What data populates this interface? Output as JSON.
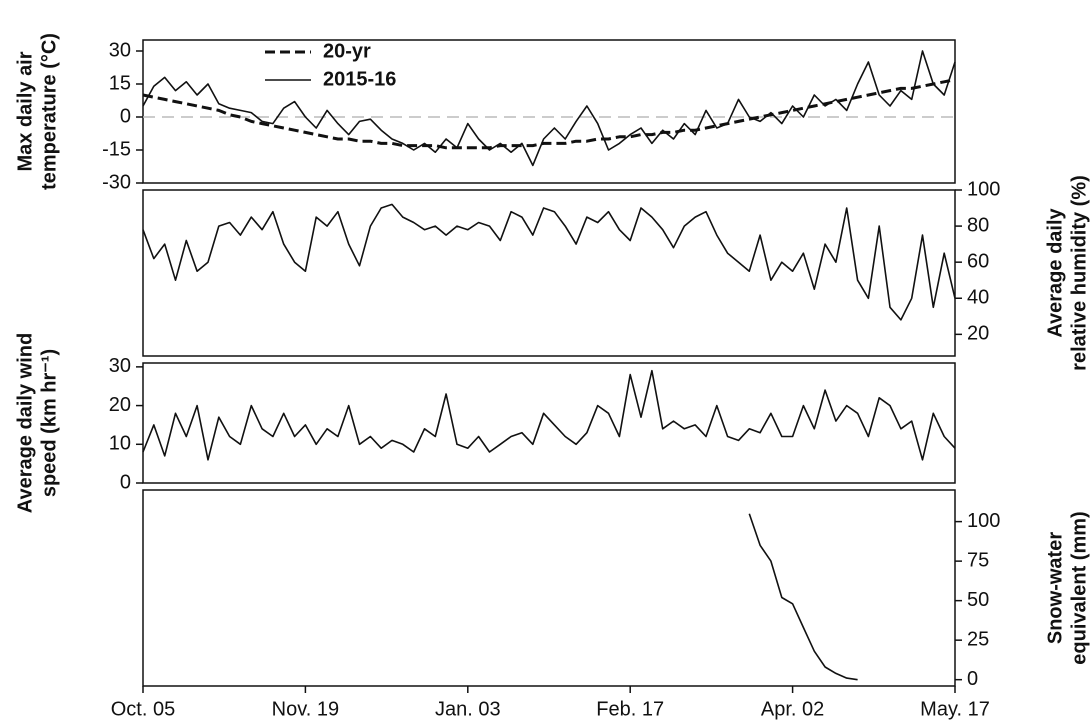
{
  "chart_data": [
    {
      "type": "line",
      "y_label": [
        "Max daily air",
        "temperature (°C)"
      ],
      "y_axis_side": "left",
      "ylim": [
        -30,
        35
      ],
      "yticks": [
        -30,
        -15,
        0,
        15,
        30
      ],
      "reference_line": 0,
      "legend": "upper left",
      "series": [
        {
          "name": "20-yr",
          "color": "#111111",
          "dashed": true,
          "values": [
            10,
            9,
            8,
            7,
            6,
            5,
            4,
            3,
            1,
            0,
            -2,
            -3,
            -4,
            -5,
            -6,
            -7,
            -8,
            -9,
            -10,
            -10,
            -11,
            -11,
            -12,
            -12,
            -13,
            -13,
            -13,
            -13,
            -14,
            -14,
            -14,
            -14,
            -14,
            -13,
            -13,
            -13,
            -13,
            -12,
            -12,
            -12,
            -11,
            -11,
            -10,
            -10,
            -9,
            -9,
            -8,
            -8,
            -7,
            -7,
            -6,
            -6,
            -5,
            -4,
            -3,
            -2,
            -1,
            0,
            1,
            2,
            3,
            4,
            5,
            6,
            7,
            8,
            9,
            10,
            11,
            12,
            13,
            13,
            14,
            15,
            16,
            17
          ]
        },
        {
          "name": "2015-16",
          "color": "#111111",
          "dashed": false,
          "values": [
            5,
            14,
            18,
            12,
            16,
            10,
            15,
            6,
            4,
            3,
            2,
            -2,
            -3,
            4,
            7,
            0,
            -5,
            3,
            -3,
            -8,
            -2,
            -1,
            -6,
            -10,
            -12,
            -15,
            -12,
            -16,
            -10,
            -14,
            -3,
            -10,
            -15,
            -12,
            -16,
            -12,
            -22,
            -10,
            -5,
            -10,
            -2,
            5,
            -3,
            -15,
            -12,
            -8,
            -5,
            -12,
            -6,
            -10,
            -3,
            -8,
            3,
            -5,
            -3,
            8,
            0,
            -2,
            2,
            -3,
            5,
            0,
            10,
            5,
            8,
            3,
            15,
            25,
            10,
            5,
            12,
            8,
            30,
            15,
            10,
            25
          ]
        }
      ]
    },
    {
      "type": "line",
      "y_label": [
        "Average daily",
        "relative humidity (%)"
      ],
      "y_axis_side": "right",
      "ylim": [
        8,
        100
      ],
      "yticks": [
        20,
        40,
        60,
        80,
        100
      ],
      "series": [
        {
          "color": "#111111",
          "values": [
            78,
            62,
            70,
            50,
            72,
            55,
            60,
            80,
            82,
            75,
            85,
            78,
            88,
            70,
            60,
            55,
            85,
            80,
            88,
            70,
            58,
            80,
            90,
            92,
            85,
            82,
            78,
            80,
            75,
            80,
            78,
            82,
            80,
            72,
            88,
            85,
            75,
            90,
            88,
            80,
            70,
            85,
            82,
            88,
            78,
            72,
            90,
            85,
            78,
            68,
            80,
            85,
            88,
            75,
            65,
            60,
            55,
            75,
            50,
            60,
            55,
            65,
            45,
            70,
            60,
            90,
            50,
            40,
            80,
            35,
            28,
            40,
            75,
            35,
            65,
            40
          ]
        }
      ]
    },
    {
      "type": "line",
      "y_label": [
        "Average daily wind",
        "speed (km hr⁻¹)"
      ],
      "y_axis_side": "left",
      "ylim": [
        0,
        31
      ],
      "yticks": [
        0,
        10,
        20,
        30
      ],
      "series": [
        {
          "color": "#111111",
          "values": [
            8,
            15,
            7,
            18,
            12,
            20,
            6,
            17,
            12,
            10,
            20,
            14,
            12,
            18,
            12,
            15,
            10,
            14,
            12,
            20,
            10,
            12,
            9,
            11,
            10,
            8,
            14,
            12,
            23,
            10,
            9,
            12,
            8,
            10,
            12,
            13,
            10,
            18,
            15,
            12,
            10,
            13,
            20,
            18,
            12,
            28,
            17,
            29,
            14,
            16,
            14,
            15,
            12,
            20,
            12,
            11,
            14,
            13,
            18,
            12,
            12,
            20,
            14,
            24,
            16,
            20,
            18,
            12,
            22,
            20,
            14,
            16,
            6,
            18,
            12,
            9
          ]
        }
      ]
    },
    {
      "type": "line",
      "y_label": [
        "Snow-water",
        "equivalent (mm)"
      ],
      "y_axis_side": "right",
      "ylim": [
        -4,
        120
      ],
      "yticks": [
        0,
        25,
        50,
        75,
        100
      ],
      "categories": [
        "Oct. 05",
        null,
        null,
        null,
        null,
        null,
        null,
        null,
        null,
        null,
        null,
        null,
        null,
        null,
        null,
        "Nov. 19",
        null,
        null,
        null,
        null,
        null,
        null,
        null,
        null,
        null,
        null,
        null,
        null,
        null,
        null,
        "Jan. 03",
        null,
        null,
        null,
        null,
        null,
        null,
        null,
        null,
        null,
        null,
        null,
        null,
        null,
        null,
        "Feb. 17",
        null,
        null,
        null,
        null,
        null,
        null,
        null,
        null,
        null,
        null,
        null,
        null,
        null,
        null,
        "Apr. 02",
        null,
        null,
        null,
        null,
        null,
        null,
        null,
        null,
        null,
        null,
        null,
        null,
        null,
        null,
        "May. 17"
      ],
      "series": [
        {
          "color": "#111111",
          "values": [
            null,
            null,
            null,
            null,
            null,
            null,
            null,
            null,
            null,
            null,
            null,
            null,
            null,
            null,
            null,
            null,
            null,
            null,
            null,
            null,
            null,
            null,
            null,
            null,
            null,
            null,
            null,
            null,
            null,
            null,
            null,
            null,
            null,
            null,
            null,
            null,
            null,
            null,
            null,
            null,
            null,
            null,
            null,
            null,
            null,
            null,
            null,
            null,
            null,
            null,
            null,
            null,
            null,
            null,
            null,
            null,
            105,
            85,
            75,
            52,
            48,
            33,
            18,
            8,
            4,
            1,
            0,
            null,
            null,
            null,
            null,
            null,
            null,
            null,
            null,
            null
          ]
        }
      ]
    }
  ]
}
